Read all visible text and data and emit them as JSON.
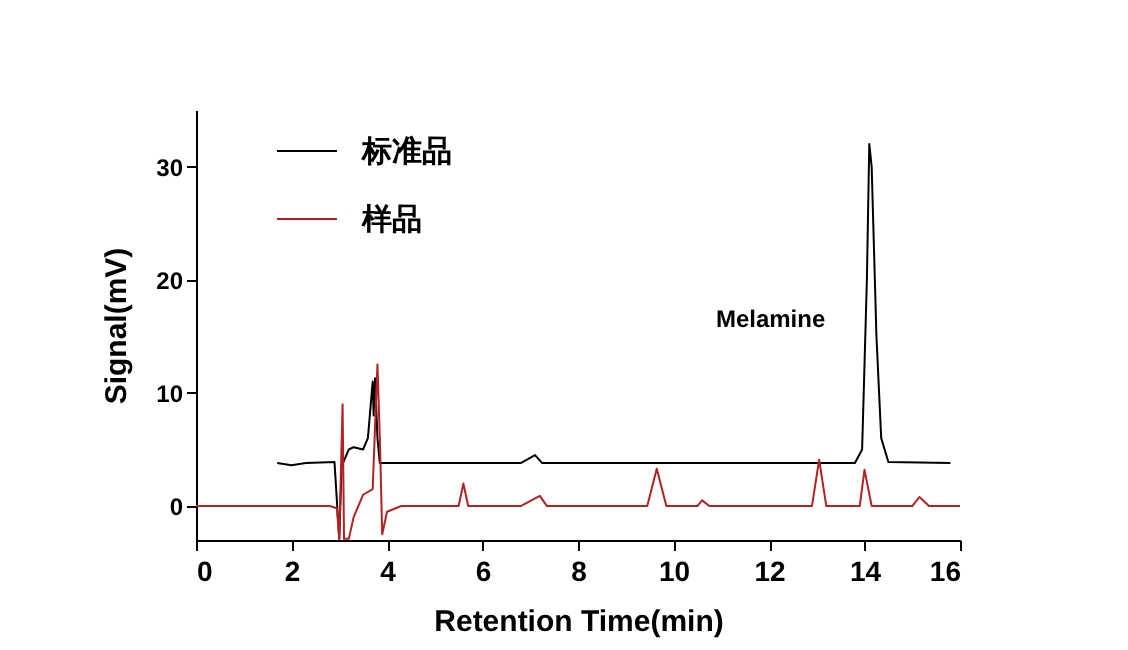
{
  "chart_data": {
    "type": "line",
    "xlabel": "Retention Time(min)",
    "ylabel": "Signal(mV)",
    "xlim": [
      0,
      16
    ],
    "xticks": [
      0,
      2,
      4,
      6,
      8,
      10,
      12,
      14,
      16
    ],
    "ylim": [
      -3,
      35
    ],
    "yticks": [
      0,
      10,
      20,
      30
    ],
    "grid": false,
    "legend": "top left",
    "line_style": "solid",
    "marker": "none",
    "annotations": [
      {
        "text": "Melamine",
        "x": 14.1,
        "y": 16.5
      }
    ],
    "series": [
      {
        "name": "标准品",
        "color": "#000000",
        "x": [
          1.7,
          2.0,
          2.3,
          2.9,
          3.0,
          3.05,
          3.2,
          3.3,
          3.5,
          3.6,
          3.7,
          3.72,
          3.75,
          3.8,
          3.85,
          6.8,
          7.1,
          7.25,
          13.8,
          13.95,
          14.05,
          14.1,
          14.15,
          14.25,
          14.35,
          14.5,
          15.8
        ],
        "values": [
          3.8,
          3.6,
          3.8,
          3.9,
          -2.9,
          3.5,
          5,
          5.2,
          5,
          6,
          11,
          8,
          11.3,
          6,
          3.8,
          3.8,
          4.5,
          3.8,
          3.8,
          5,
          20,
          32,
          30,
          15,
          6,
          3.9,
          3.8
        ]
      },
      {
        "name": "样品",
        "color": "#b22222",
        "x": [
          0,
          2.8,
          2.95,
          3.0,
          3.07,
          3.1,
          3.2,
          3.3,
          3.5,
          3.7,
          3.8,
          3.85,
          3.9,
          4.0,
          4.3,
          5.5,
          5.6,
          5.7,
          6.8,
          7.2,
          7.35,
          9.45,
          9.65,
          9.85,
          10.5,
          10.6,
          10.75,
          12.9,
          13.05,
          13.2,
          13.9,
          14.0,
          14.15,
          15.0,
          15.15,
          15.35,
          16.0
        ],
        "values": [
          0,
          0,
          -0.2,
          -2.9,
          9,
          -2.9,
          -2.9,
          -1,
          1,
          1.5,
          12.5,
          6,
          -2.5,
          -0.5,
          0,
          0,
          2,
          0,
          0,
          0.9,
          0,
          0,
          3.3,
          0,
          0,
          0.5,
          0,
          0,
          4.1,
          0,
          0,
          3.2,
          0,
          0,
          0.8,
          0,
          0
        ]
      }
    ]
  }
}
